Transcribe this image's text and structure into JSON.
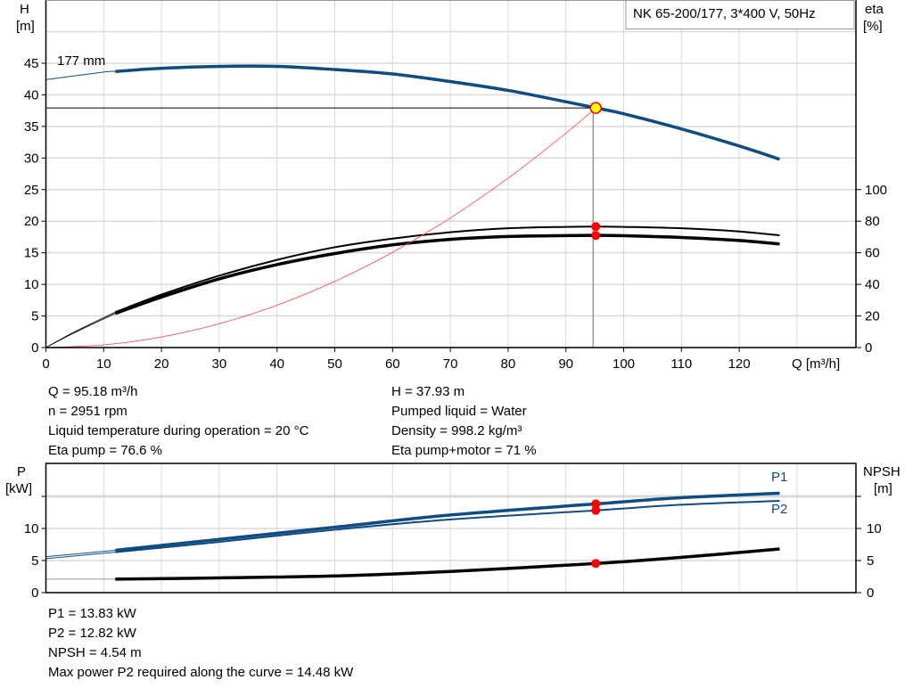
{
  "title_box": "NK 65-200/177, 3*400 V, 50Hz",
  "colors": {
    "head": "#0f4c81",
    "power": "#0f4c81",
    "eta": "#000000",
    "npsh": "#000000",
    "system": "#ff4040",
    "point": "#ff0000",
    "duty_point_fill": "#ffff00",
    "grid": "#d9d9d9"
  },
  "chart_data": [
    {
      "type": "line",
      "title": "",
      "xlabel": "Q [m³/h]",
      "ylabel_left": [
        "H",
        "[m]"
      ],
      "ylabel_right": [
        "eta",
        "[%]"
      ],
      "xlim": [
        0,
        140
      ],
      "ylim_left": [
        0,
        50
      ],
      "ylim_right": [
        0,
        200
      ],
      "x_ticks": [
        0,
        10,
        20,
        30,
        40,
        50,
        60,
        70,
        80,
        90,
        100,
        110,
        120
      ],
      "y_ticks_left": [
        0,
        5,
        10,
        15,
        20,
        25,
        30,
        35,
        40,
        45
      ],
      "y_ticks_right": [
        0,
        20,
        40,
        60,
        80,
        100
      ],
      "grid": true,
      "min_flow": 12,
      "curve_label": "177 mm",
      "duty_point": {
        "Q": 95.18,
        "H": 37.93,
        "eta_pump": 76.6,
        "eta_total": 71
      },
      "series": [
        {
          "key": "head",
          "axis": "left",
          "x": [
            0,
            10,
            12,
            20,
            30,
            40,
            50,
            60,
            70,
            80,
            90,
            95.18,
            100,
            110,
            120,
            127
          ],
          "y": [
            42.4,
            43.6,
            43.7,
            44.2,
            44.5,
            44.5,
            44.0,
            43.3,
            42.1,
            40.7,
            38.9,
            37.93,
            37.0,
            34.6,
            31.9,
            29.8
          ]
        },
        {
          "key": "eta_pump",
          "axis": "right",
          "x": [
            0,
            5,
            12,
            20,
            30,
            40,
            50,
            60,
            70,
            80,
            90,
            95.18,
            100,
            110,
            120,
            127
          ],
          "y": [
            0,
            10,
            22.4,
            33.5,
            45.5,
            55.5,
            63.5,
            69,
            73,
            75.5,
            76.4,
            76.6,
            76.4,
            75.5,
            73.5,
            71
          ]
        },
        {
          "key": "eta_total",
          "axis": "right",
          "x": [
            0,
            5,
            12,
            20,
            30,
            40,
            50,
            60,
            70,
            80,
            90,
            95.18,
            100,
            110,
            120,
            127
          ],
          "y": [
            0,
            9.5,
            21.6,
            32,
            43.5,
            52.5,
            59.5,
            65,
            68.5,
            70.3,
            70.9,
            71,
            70.8,
            69.7,
            67.8,
            65.6
          ]
        },
        {
          "key": "system",
          "axis": "left",
          "x": [
            0,
            10,
            20,
            30,
            40,
            50,
            60,
            70,
            80,
            90,
            95.18
          ],
          "y": [
            0,
            0.42,
            1.67,
            3.77,
            6.7,
            10.47,
            15.07,
            20.51,
            26.8,
            33.92,
            37.93
          ]
        }
      ]
    },
    {
      "type": "line",
      "title": "",
      "ylabel_left": [
        "P",
        "[kW]"
      ],
      "ylabel_right": [
        "NPSH",
        "[m]"
      ],
      "xlim": [
        0,
        140
      ],
      "ylim_left": [
        0,
        20
      ],
      "ylim_right": [
        0,
        20
      ],
      "y_ticks_left": [
        0,
        5,
        10,
        15
      ],
      "y_tick_labels_left": [
        "0",
        "5",
        "10",
        ""
      ],
      "y_ticks_right": [
        0,
        5,
        10,
        15
      ],
      "y_tick_labels_right": [
        "0",
        "5",
        "10",
        ""
      ],
      "grid": true,
      "min_flow": 12,
      "series": [
        {
          "key": "P1",
          "name": "P1",
          "x": [
            0,
            12,
            30,
            50,
            70,
            95.18,
            110,
            127
          ],
          "y": [
            5.6,
            6.6,
            8.3,
            10.2,
            12.1,
            13.83,
            14.8,
            15.5
          ]
        },
        {
          "key": "P2",
          "name": "P2",
          "x": [
            0,
            12,
            30,
            50,
            70,
            95.18,
            110,
            127
          ],
          "y": [
            5.3,
            6.3,
            7.9,
            9.8,
            11.4,
            12.82,
            13.7,
            14.3
          ]
        },
        {
          "key": "NPSH",
          "x": [
            0,
            12,
            30,
            50,
            70,
            95.18,
            110,
            127
          ],
          "y": [
            2.1,
            2.1,
            2.3,
            2.6,
            3.3,
            4.54,
            5.5,
            6.8
          ]
        }
      ],
      "duty_point": {
        "Q": 95.18,
        "P1": 13.83,
        "P2": 12.82,
        "NPSH": 4.54
      }
    }
  ],
  "info_top_left": [
    "Q = 95.18 m³/h",
    "n = 2951 rpm",
    "Liquid temperature during operation = 20 °C",
    "Eta pump = 76.6 %"
  ],
  "info_top_right": [
    "H = 37.93 m",
    "Pumped liquid = Water",
    "Density = 998.2 kg/m³",
    "Eta pump+motor = 71 %"
  ],
  "info_bottom": [
    "P1 = 13.83 kW",
    "P2 = 12.82 kW",
    "NPSH = 4.54 m",
    "Max power P2 required along the curve = 14.48 kW"
  ]
}
